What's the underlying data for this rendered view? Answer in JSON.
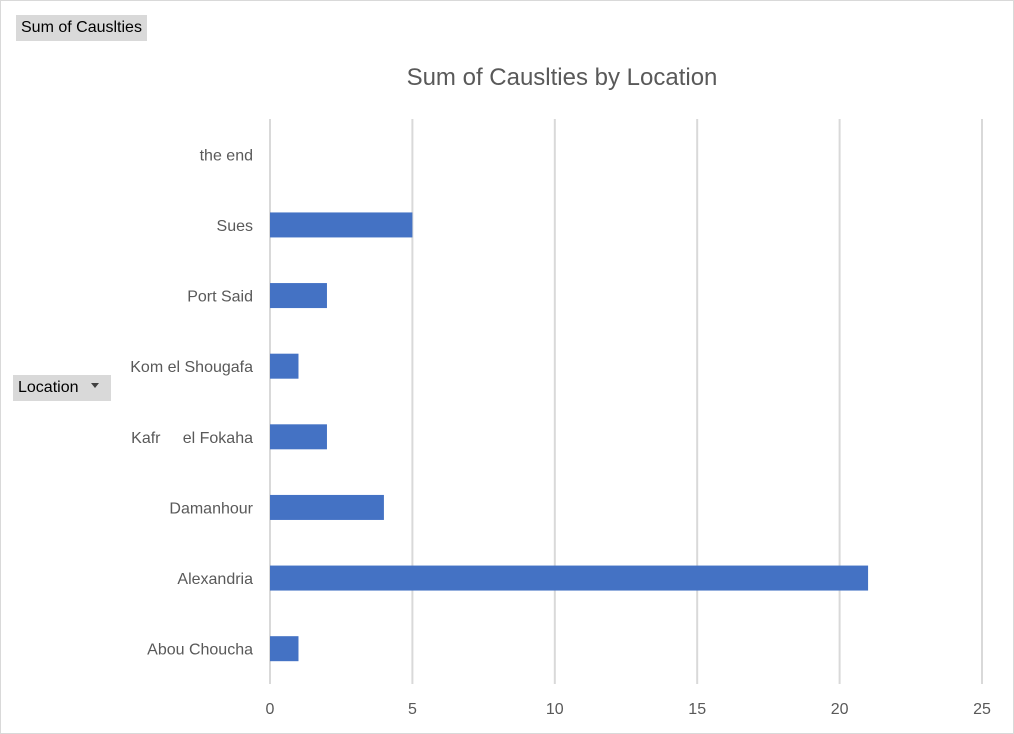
{
  "pivot": {
    "value_field_label": "Sum of Causlties",
    "axis_field_label": "Location",
    "axis_field_icon": "dropdown-arrow-icon"
  },
  "colors": {
    "bar": "#4472C4",
    "gridline": "#d9d9d9",
    "text": "#595959",
    "field_button_bg": "#d9d9d9"
  },
  "chart_data": {
    "type": "bar",
    "orientation": "horizontal",
    "title": "Sum of Causlties by Location",
    "xlabel": "",
    "ylabel": "",
    "categories": [
      "Abou Choucha",
      "Alexandria",
      "Damanhour",
      "Kafr     el Fokaha",
      "Kom el Shougafa",
      "Port Said",
      "Sues",
      "the end"
    ],
    "values": [
      1,
      21,
      4,
      2,
      1,
      2,
      5,
      null
    ],
    "xlim": [
      0,
      25
    ],
    "x_ticks": [
      0,
      5,
      10,
      15,
      20,
      25
    ],
    "grid": "vertical",
    "legend": "none"
  }
}
